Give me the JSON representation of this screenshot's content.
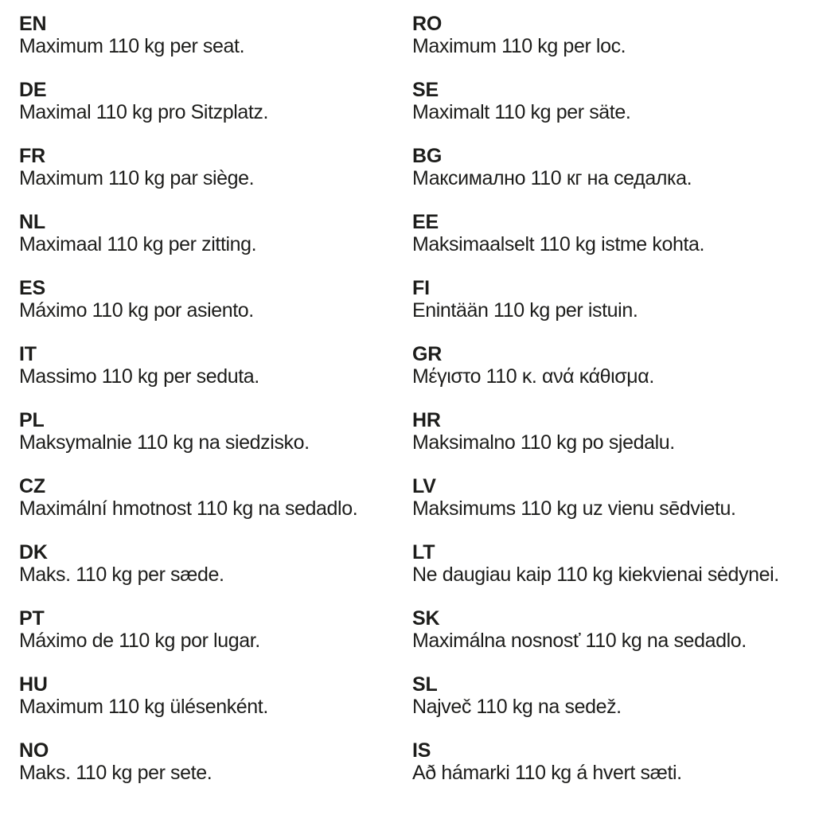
{
  "page": {
    "background_color": "#ffffff",
    "text_color": "#1d1d1b",
    "description_value": "110"
  },
  "columns": [
    {
      "entries": [
        {
          "code": "EN",
          "text": "Maximum 110 kg per seat."
        },
        {
          "code": "DE",
          "text": "Maximal 110 kg pro Sitzplatz."
        },
        {
          "code": "FR",
          "text": "Maximum 110 kg par siège."
        },
        {
          "code": "NL",
          "text": "Maximaal 110 kg per zitting."
        },
        {
          "code": "ES",
          "text": "Máximo 110 kg por asiento."
        },
        {
          "code": "IT",
          "text": "Massimo 110 kg per seduta."
        },
        {
          "code": "PL",
          "text": "Maksymalnie 110 kg na siedzisko."
        },
        {
          "code": "CZ",
          "text": "Maximální hmotnost 110 kg na sedadlo."
        },
        {
          "code": "DK",
          "text": "Maks. 110 kg per sæde."
        },
        {
          "code": "PT",
          "text": "Máximo de 110 kg por lugar."
        },
        {
          "code": "HU",
          "text": "Maximum 110 kg ülésenként."
        },
        {
          "code": "NO",
          "text": "Maks. 110 kg per sete."
        }
      ]
    },
    {
      "entries": [
        {
          "code": "RO",
          "text": "Maximum 110 kg per loc."
        },
        {
          "code": "SE",
          "text": "Maximalt 110 kg per säte."
        },
        {
          "code": "BG",
          "text": "Максимално 110 кг на седалка."
        },
        {
          "code": "EE",
          "text": "Maksimaalselt 110 kg istme kohta."
        },
        {
          "code": "FI",
          "text": "Enintään 110 kg per istuin."
        },
        {
          "code": "GR",
          "text": "Μέγιστο 110 κ. ανά κάθισμα."
        },
        {
          "code": "HR",
          "text": "Maksimalno 110 kg po sjedalu."
        },
        {
          "code": "LV",
          "text": "Maksimums 110 kg uz vienu sēdvietu."
        },
        {
          "code": "LT",
          "text": "Ne daugiau kaip 110 kg kiekvienai sėdynei."
        },
        {
          "code": "SK",
          "text": "Maximálna nosnosť 110 kg na sedadlo."
        },
        {
          "code": "SL",
          "text": "Največ 110 kg na sedež."
        },
        {
          "code": "IS",
          "text": "Að hámarki 110 kg á hvert sæti."
        }
      ]
    }
  ]
}
